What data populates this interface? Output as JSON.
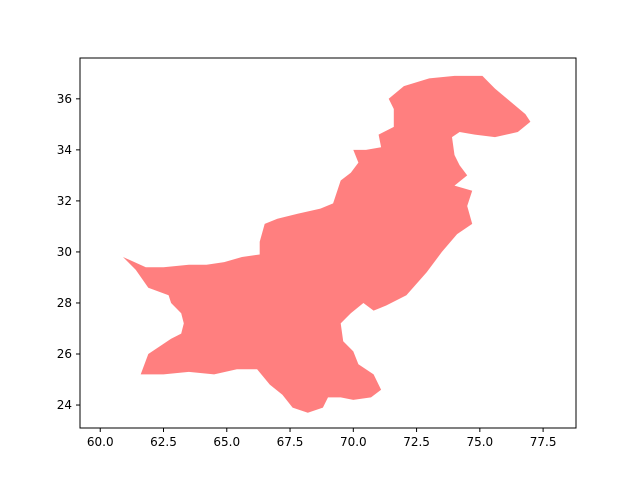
{
  "chart_data": {
    "type": "map",
    "title": "",
    "xlabel": "",
    "ylabel": "",
    "xlim": [
      59.2,
      78.8
    ],
    "ylim": [
      23.1,
      37.6
    ],
    "grid": false,
    "colors": {
      "fill": "#ff7f7f",
      "frame": "#000000",
      "background": "#ffffff"
    },
    "x_ticks": [
      {
        "value": 60.0,
        "label": "60.0"
      },
      {
        "value": 62.5,
        "label": "62.5"
      },
      {
        "value": 65.0,
        "label": "65.0"
      },
      {
        "value": 67.5,
        "label": "67.5"
      },
      {
        "value": 70.0,
        "label": "70.0"
      },
      {
        "value": 72.5,
        "label": "72.5"
      },
      {
        "value": 75.0,
        "label": "75.0"
      },
      {
        "value": 77.5,
        "label": "77.5"
      }
    ],
    "y_ticks": [
      {
        "value": 24,
        "label": "24"
      },
      {
        "value": 26,
        "label": "26"
      },
      {
        "value": 28,
        "label": "28"
      },
      {
        "value": 30,
        "label": "30"
      },
      {
        "value": 32,
        "label": "32"
      },
      {
        "value": 34,
        "label": "34"
      },
      {
        "value": 36,
        "label": "36"
      }
    ],
    "region_outline": [
      [
        60.9,
        29.8
      ],
      [
        61.8,
        29.4
      ],
      [
        62.5,
        29.4
      ],
      [
        63.5,
        29.5
      ],
      [
        64.2,
        29.5
      ],
      [
        64.9,
        29.6
      ],
      [
        65.6,
        29.8
      ],
      [
        66.3,
        29.9
      ],
      [
        66.3,
        30.4
      ],
      [
        66.5,
        31.1
      ],
      [
        67.0,
        31.3
      ],
      [
        67.8,
        31.5
      ],
      [
        68.7,
        31.7
      ],
      [
        69.2,
        31.9
      ],
      [
        69.5,
        32.8
      ],
      [
        69.9,
        33.1
      ],
      [
        70.2,
        33.5
      ],
      [
        70.0,
        34.0
      ],
      [
        70.5,
        34.0
      ],
      [
        71.1,
        34.1
      ],
      [
        71.0,
        34.6
      ],
      [
        71.6,
        34.9
      ],
      [
        71.6,
        35.6
      ],
      [
        71.4,
        36.0
      ],
      [
        72.0,
        36.5
      ],
      [
        73.0,
        36.8
      ],
      [
        74.0,
        36.9
      ],
      [
        74.5,
        36.9
      ],
      [
        75.1,
        36.9
      ],
      [
        75.6,
        36.4
      ],
      [
        76.2,
        35.9
      ],
      [
        76.8,
        35.4
      ],
      [
        77.0,
        35.1
      ],
      [
        76.5,
        34.7
      ],
      [
        75.6,
        34.5
      ],
      [
        74.8,
        34.6
      ],
      [
        74.2,
        34.7
      ],
      [
        73.9,
        34.5
      ],
      [
        74.0,
        33.8
      ],
      [
        74.2,
        33.4
      ],
      [
        74.5,
        33.0
      ],
      [
        74.0,
        32.6
      ],
      [
        74.7,
        32.4
      ],
      [
        74.5,
        31.8
      ],
      [
        74.7,
        31.1
      ],
      [
        74.1,
        30.7
      ],
      [
        73.5,
        30.0
      ],
      [
        72.9,
        29.2
      ],
      [
        72.1,
        28.3
      ],
      [
        71.3,
        27.9
      ],
      [
        70.8,
        27.7
      ],
      [
        70.4,
        28.0
      ],
      [
        69.9,
        27.6
      ],
      [
        69.5,
        27.2
      ],
      [
        69.6,
        26.5
      ],
      [
        70.0,
        26.1
      ],
      [
        70.2,
        25.6
      ],
      [
        70.8,
        25.2
      ],
      [
        71.1,
        24.6
      ],
      [
        70.7,
        24.3
      ],
      [
        70.0,
        24.2
      ],
      [
        69.5,
        24.3
      ],
      [
        69.0,
        24.3
      ],
      [
        68.8,
        23.9
      ],
      [
        68.2,
        23.7
      ],
      [
        67.6,
        23.9
      ],
      [
        67.2,
        24.4
      ],
      [
        66.7,
        24.8
      ],
      [
        66.2,
        25.4
      ],
      [
        65.4,
        25.4
      ],
      [
        64.5,
        25.2
      ],
      [
        63.5,
        25.3
      ],
      [
        62.5,
        25.2
      ],
      [
        61.6,
        25.2
      ],
      [
        61.9,
        26.0
      ],
      [
        62.8,
        26.6
      ],
      [
        63.2,
        26.8
      ],
      [
        63.3,
        27.2
      ],
      [
        63.2,
        27.6
      ],
      [
        62.8,
        28.0
      ],
      [
        62.7,
        28.3
      ],
      [
        61.9,
        28.6
      ],
      [
        61.4,
        29.3
      ],
      [
        60.9,
        29.8
      ]
    ]
  }
}
